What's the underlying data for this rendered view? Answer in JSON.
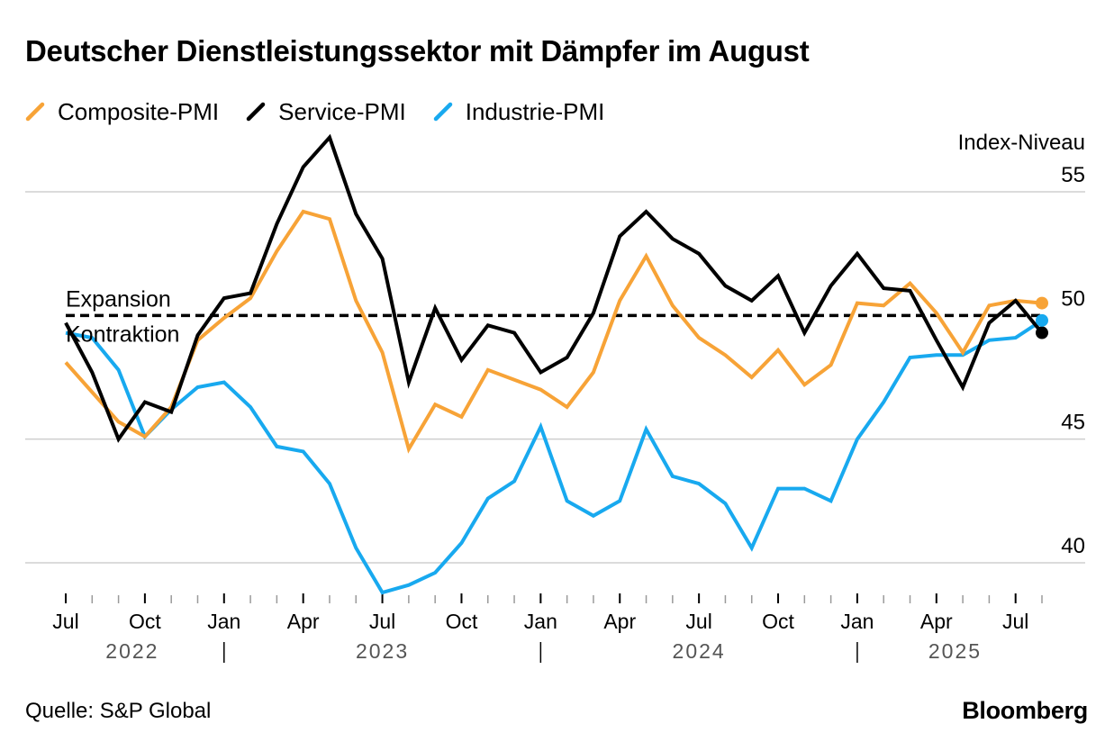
{
  "title": "Deutscher Dienstleistungssektor mit Dämpfer im August",
  "source": "Quelle: S&P Global",
  "logo": "Bloomberg",
  "colors": {
    "composite": "#f7a337",
    "service": "#000000",
    "industry": "#18a9ef",
    "grid": "#cfcfcf"
  },
  "chart_data": {
    "type": "line",
    "title": "Deutscher Dienstleistungssektor mit Dämpfer im August",
    "ylabel": "Index-Niveau",
    "ylim": [
      38.8,
      56.5
    ],
    "yticks": [
      40,
      45,
      50,
      55
    ],
    "grid": true,
    "legend_position": "top-left",
    "reference_line": {
      "value": 50,
      "label_above": "Expansion",
      "label_below": "Kontraktion",
      "style": "dashed"
    },
    "x": [
      "2022-07",
      "2022-08",
      "2022-09",
      "2022-10",
      "2022-11",
      "2022-12",
      "2023-01",
      "2023-02",
      "2023-03",
      "2023-04",
      "2023-05",
      "2023-06",
      "2023-07",
      "2023-08",
      "2023-09",
      "2023-10",
      "2023-11",
      "2023-12",
      "2024-01",
      "2024-02",
      "2024-03",
      "2024-04",
      "2024-05",
      "2024-06",
      "2024-07",
      "2024-08",
      "2024-09",
      "2024-10",
      "2024-11",
      "2024-12",
      "2025-01",
      "2025-02",
      "2025-03",
      "2025-04",
      "2025-05",
      "2025-06",
      "2025-07",
      "2025-08"
    ],
    "x_tick_labels": [
      {
        "x": "2022-07",
        "label": "Jul"
      },
      {
        "x": "2022-10",
        "label": "Oct"
      },
      {
        "x": "2023-01",
        "label": "Jan"
      },
      {
        "x": "2023-04",
        "label": "Apr"
      },
      {
        "x": "2023-07",
        "label": "Jul"
      },
      {
        "x": "2023-10",
        "label": "Oct"
      },
      {
        "x": "2024-01",
        "label": "Jan"
      },
      {
        "x": "2024-04",
        "label": "Apr"
      },
      {
        "x": "2024-07",
        "label": "Jul"
      },
      {
        "x": "2024-10",
        "label": "Oct"
      },
      {
        "x": "2025-01",
        "label": "Jan"
      },
      {
        "x": "2025-04",
        "label": "Apr"
      },
      {
        "x": "2025-07",
        "label": "Jul"
      }
    ],
    "years": [
      "2022",
      "2023",
      "2024",
      "2025"
    ],
    "series": [
      {
        "name": "Composite-PMI",
        "color": "#f7a337",
        "values": [
          48.1,
          46.9,
          45.7,
          45.1,
          46.3,
          49.0,
          49.9,
          50.7,
          52.6,
          54.2,
          53.9,
          50.6,
          48.5,
          44.6,
          46.4,
          45.9,
          47.8,
          47.4,
          47.0,
          46.3,
          47.7,
          50.6,
          52.4,
          50.4,
          49.1,
          48.4,
          47.5,
          48.6,
          47.2,
          48.0,
          50.5,
          50.4,
          51.3,
          50.1,
          48.5,
          50.4,
          50.6,
          50.5
        ]
      },
      {
        "name": "Service-PMI",
        "color": "#000000",
        "values": [
          49.7,
          47.7,
          45.0,
          46.5,
          46.1,
          49.2,
          50.7,
          50.9,
          53.7,
          56.0,
          57.2,
          54.1,
          52.3,
          47.3,
          50.3,
          48.2,
          49.6,
          49.3,
          47.7,
          48.3,
          50.1,
          53.2,
          54.2,
          53.1,
          52.5,
          51.2,
          50.6,
          51.6,
          49.3,
          51.2,
          52.5,
          51.1,
          51.0,
          49.0,
          47.1,
          49.7,
          50.6,
          49.3
        ]
      },
      {
        "name": "Industrie-PMI",
        "color": "#18a9ef",
        "values": [
          49.3,
          49.1,
          47.8,
          45.1,
          46.2,
          47.1,
          47.3,
          46.3,
          44.7,
          44.5,
          43.2,
          40.6,
          38.8,
          39.1,
          39.6,
          40.8,
          42.6,
          43.3,
          45.5,
          42.5,
          41.9,
          42.5,
          45.4,
          43.5,
          43.2,
          42.4,
          40.6,
          43.0,
          43.0,
          42.5,
          45.0,
          46.5,
          48.3,
          48.4,
          48.4,
          49.0,
          49.1,
          49.8
        ]
      }
    ]
  }
}
